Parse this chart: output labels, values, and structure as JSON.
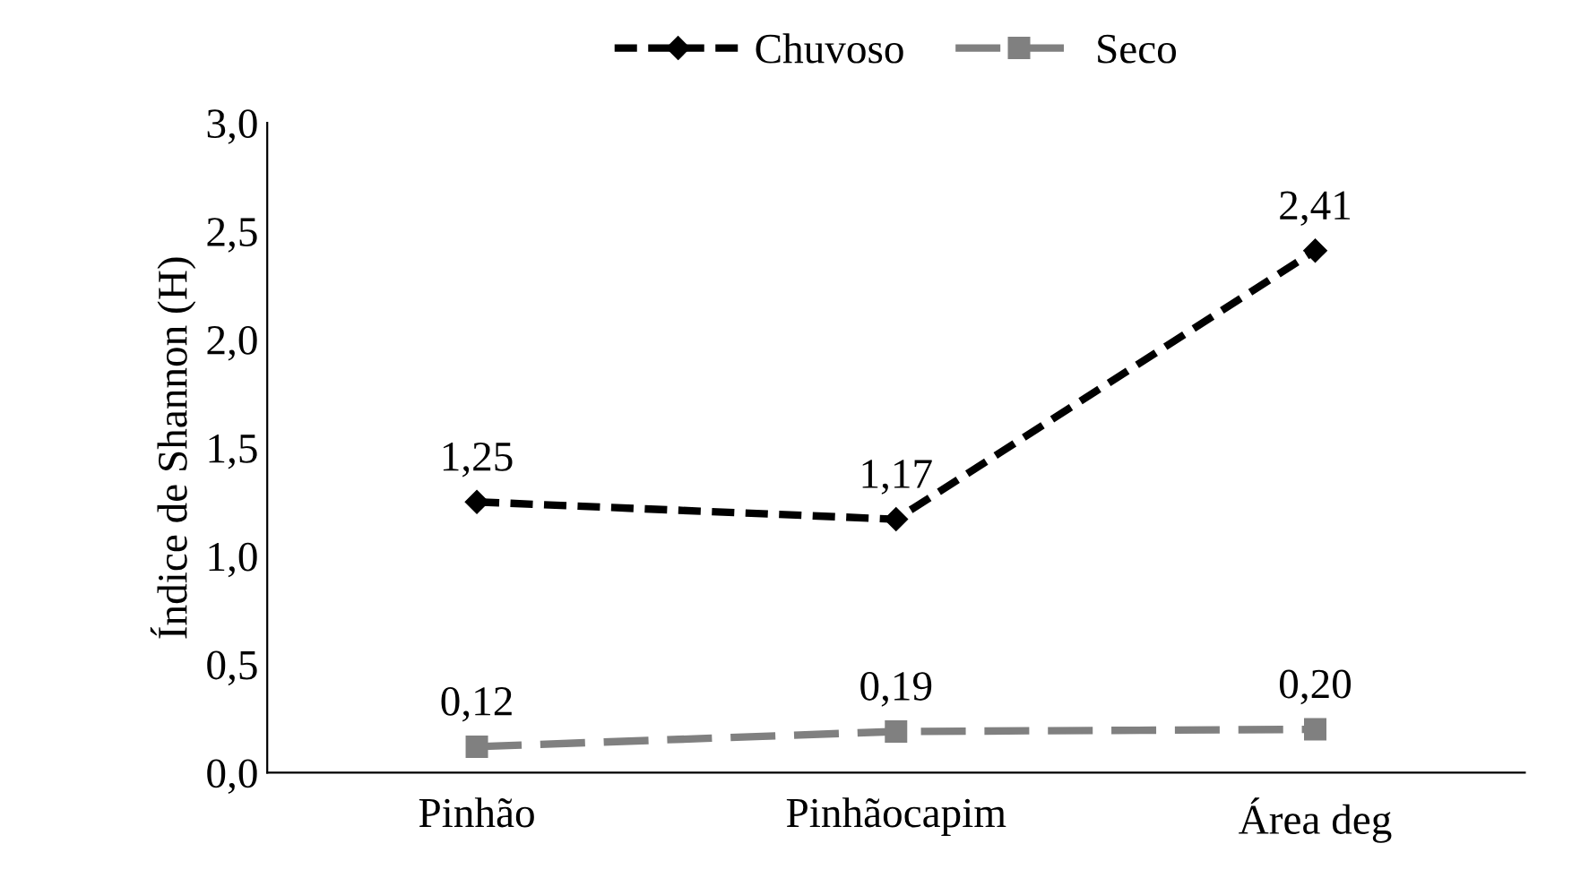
{
  "chart_data": {
    "type": "line",
    "ylabel": "Índice de Shannon (H)",
    "categories": [
      "Pinhão",
      "Pinhãocapim",
      "Área deg"
    ],
    "series": [
      {
        "name": "Chuvoso",
        "color": "#000000",
        "values": [
          1.25,
          1.17,
          2.41
        ],
        "value_labels": [
          "1,25",
          "1,17",
          "2,41"
        ],
        "marker": "diamond",
        "line_style": "dashed"
      },
      {
        "name": "Seco",
        "color": "#808080",
        "values": [
          0.12,
          0.19,
          0.2
        ],
        "value_labels": [
          "0,12",
          "0,19",
          "0,20"
        ],
        "marker": "square",
        "line_style": "dashed"
      }
    ],
    "ylim": [
      0,
      3
    ],
    "yticks": [
      {
        "value": 0,
        "label": "0,0"
      },
      {
        "value": 0.5,
        "label": "0,5"
      },
      {
        "value": 1,
        "label": "1,0"
      },
      {
        "value": 1.5,
        "label": "1,5"
      },
      {
        "value": 2,
        "label": "2,0"
      },
      {
        "value": 2.5,
        "label": "2,5"
      },
      {
        "value": 3,
        "label": "3,0"
      }
    ],
    "grid": false,
    "legend": "top"
  }
}
